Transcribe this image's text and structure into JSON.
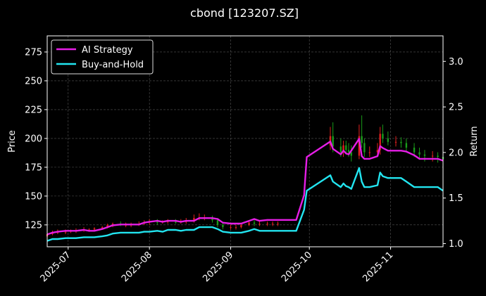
{
  "chart_data": {
    "type": "line",
    "title": "cbond [123207.SZ]",
    "xlabel": "",
    "ylabel_left": "Price",
    "ylabel_right": "Return",
    "x_ticks": [
      "2025-07",
      "2025-08",
      "2025-09",
      "2025-10",
      "2025-11"
    ],
    "y_left_ticks": [
      125,
      150,
      175,
      200,
      225,
      250,
      275
    ],
    "y_right_ticks": [
      "1.0",
      "1.5",
      "2.0",
      "2.5",
      "3.0"
    ],
    "x_range": [
      "2025-06-23",
      "2025-11-21"
    ],
    "y_left_range": [
      106,
      289
    ],
    "y_right_range": [
      0.965,
      3.28
    ],
    "grid": true,
    "legend_position": "upper-left",
    "colors": {
      "ai_strategy": "#e61ee6",
      "buy_and_hold": "#22e5f0",
      "candle_up": "#e02020",
      "candle_down": "#1a9a1a",
      "grid": "#555555",
      "axes": "#ffffff"
    },
    "series": [
      {
        "name": "AI Strategy",
        "axis": "right",
        "x": [
          "2025-06-23",
          "2025-06-25",
          "2025-06-27",
          "2025-06-30",
          "2025-07-02",
          "2025-07-04",
          "2025-07-07",
          "2025-07-09",
          "2025-07-11",
          "2025-07-14",
          "2025-07-16",
          "2025-07-18",
          "2025-07-21",
          "2025-07-23",
          "2025-07-25",
          "2025-07-28",
          "2025-07-30",
          "2025-08-01",
          "2025-08-04",
          "2025-08-06",
          "2025-08-08",
          "2025-08-11",
          "2025-08-13",
          "2025-08-15",
          "2025-08-18",
          "2025-08-20",
          "2025-08-22",
          "2025-08-25",
          "2025-08-27",
          "2025-08-29",
          "2025-09-01",
          "2025-09-03",
          "2025-09-05",
          "2025-09-08",
          "2025-09-10",
          "2025-09-12",
          "2025-09-15",
          "2025-09-17",
          "2025-09-19",
          "2025-09-22",
          "2025-09-24",
          "2025-09-26",
          "2025-09-29",
          "2025-09-30",
          "2025-10-09",
          "2025-10-10",
          "2025-10-13",
          "2025-10-14",
          "2025-10-15",
          "2025-10-16",
          "2025-10-17",
          "2025-10-20",
          "2025-10-21",
          "2025-10-22",
          "2025-10-24",
          "2025-10-27",
          "2025-10-28",
          "2025-10-29",
          "2025-10-31",
          "2025-11-03",
          "2025-11-05",
          "2025-11-07",
          "2025-11-10",
          "2025-11-12",
          "2025-11-14",
          "2025-11-17",
          "2025-11-19",
          "2025-11-21"
        ],
        "values": [
          1.1,
          1.12,
          1.13,
          1.14,
          1.14,
          1.14,
          1.15,
          1.14,
          1.14,
          1.16,
          1.18,
          1.2,
          1.21,
          1.21,
          1.21,
          1.21,
          1.23,
          1.24,
          1.25,
          1.24,
          1.25,
          1.25,
          1.24,
          1.25,
          1.25,
          1.28,
          1.28,
          1.28,
          1.27,
          1.23,
          1.22,
          1.22,
          1.22,
          1.25,
          1.27,
          1.25,
          1.26,
          1.26,
          1.26,
          1.26,
          1.26,
          1.26,
          1.53,
          1.95,
          2.12,
          2.04,
          1.98,
          2.02,
          1.99,
          1.98,
          2.02,
          2.15,
          1.96,
          1.93,
          1.93,
          1.96,
          2.07,
          2.05,
          2.02,
          2.02,
          2.02,
          2.01,
          1.97,
          1.93,
          1.93,
          1.93,
          1.93,
          1.91
        ]
      },
      {
        "name": "Buy-and-Hold",
        "axis": "right",
        "x": [
          "2025-06-23",
          "2025-06-25",
          "2025-06-27",
          "2025-06-30",
          "2025-07-02",
          "2025-07-04",
          "2025-07-07",
          "2025-07-09",
          "2025-07-11",
          "2025-07-14",
          "2025-07-16",
          "2025-07-18",
          "2025-07-21",
          "2025-07-23",
          "2025-07-25",
          "2025-07-28",
          "2025-07-30",
          "2025-08-01",
          "2025-08-04",
          "2025-08-06",
          "2025-08-08",
          "2025-08-11",
          "2025-08-13",
          "2025-08-15",
          "2025-08-18",
          "2025-08-20",
          "2025-08-22",
          "2025-08-25",
          "2025-08-27",
          "2025-08-29",
          "2025-09-01",
          "2025-09-03",
          "2025-09-05",
          "2025-09-08",
          "2025-09-10",
          "2025-09-12",
          "2025-09-15",
          "2025-09-17",
          "2025-09-19",
          "2025-09-22",
          "2025-09-24",
          "2025-09-26",
          "2025-09-29",
          "2025-09-30",
          "2025-10-09",
          "2025-10-10",
          "2025-10-13",
          "2025-10-14",
          "2025-10-15",
          "2025-10-16",
          "2025-10-17",
          "2025-10-20",
          "2025-10-21",
          "2025-10-22",
          "2025-10-24",
          "2025-10-27",
          "2025-10-28",
          "2025-10-29",
          "2025-10-31",
          "2025-11-03",
          "2025-11-05",
          "2025-11-07",
          "2025-11-10",
          "2025-11-12",
          "2025-11-14",
          "2025-11-17",
          "2025-11-19",
          "2025-11-21"
        ],
        "values": [
          1.03,
          1.05,
          1.05,
          1.06,
          1.06,
          1.06,
          1.07,
          1.07,
          1.07,
          1.08,
          1.09,
          1.11,
          1.12,
          1.12,
          1.12,
          1.12,
          1.13,
          1.13,
          1.14,
          1.13,
          1.15,
          1.15,
          1.14,
          1.15,
          1.15,
          1.18,
          1.18,
          1.18,
          1.16,
          1.13,
          1.12,
          1.12,
          1.12,
          1.14,
          1.16,
          1.14,
          1.14,
          1.14,
          1.14,
          1.14,
          1.14,
          1.14,
          1.37,
          1.58,
          1.75,
          1.68,
          1.62,
          1.66,
          1.63,
          1.62,
          1.6,
          1.83,
          1.68,
          1.62,
          1.62,
          1.64,
          1.78,
          1.74,
          1.72,
          1.72,
          1.72,
          1.68,
          1.62,
          1.62,
          1.62,
          1.62,
          1.62,
          1.58
        ]
      }
    ],
    "candles": {
      "axis": "left",
      "x": [
        "2025-06-23",
        "2025-06-25",
        "2025-06-27",
        "2025-06-30",
        "2025-07-02",
        "2025-07-04",
        "2025-07-07",
        "2025-07-09",
        "2025-07-11",
        "2025-07-14",
        "2025-07-16",
        "2025-07-18",
        "2025-07-21",
        "2025-07-23",
        "2025-07-25",
        "2025-07-28",
        "2025-07-30",
        "2025-08-01",
        "2025-08-04",
        "2025-08-06",
        "2025-08-08",
        "2025-08-11",
        "2025-08-13",
        "2025-08-15",
        "2025-08-18",
        "2025-08-20",
        "2025-08-22",
        "2025-08-25",
        "2025-08-27",
        "2025-08-29",
        "2025-09-01",
        "2025-09-03",
        "2025-09-05",
        "2025-09-08",
        "2025-09-10",
        "2025-09-12",
        "2025-09-15",
        "2025-09-17",
        "2025-09-19",
        "2025-10-09",
        "2025-10-10",
        "2025-10-13",
        "2025-10-14",
        "2025-10-15",
        "2025-10-16",
        "2025-10-17",
        "2025-10-20",
        "2025-10-21",
        "2025-10-22",
        "2025-10-24",
        "2025-10-27",
        "2025-10-28",
        "2025-10-29",
        "2025-10-31",
        "2025-11-03",
        "2025-11-05",
        "2025-11-07",
        "2025-11-10",
        "2025-11-12",
        "2025-11-14",
        "2025-11-17",
        "2025-11-19",
        "2025-11-21"
      ],
      "open": [
        115,
        117,
        118,
        119,
        119,
        120,
        120,
        121,
        121,
        122,
        123,
        125,
        126,
        125,
        125,
        125,
        126,
        127,
        128,
        127,
        128,
        128,
        127,
        128,
        128,
        131,
        131,
        131,
        129,
        125,
        123,
        123,
        123,
        125,
        127,
        126,
        126,
        126,
        126,
        194,
        202,
        193,
        188,
        194,
        190,
        188,
        185,
        202,
        196,
        188,
        188,
        190,
        204,
        200,
        197,
        197,
        196,
        192,
        188,
        186,
        185,
        185,
        184
      ],
      "close": [
        117,
        118,
        119,
        119,
        120,
        120,
        121,
        121,
        122,
        123,
        125,
        126,
        125,
        125,
        125,
        126,
        127,
        128,
        127,
        128,
        128,
        127,
        128,
        128,
        131,
        131,
        131,
        129,
        125,
        123,
        123,
        123,
        125,
        127,
        126,
        126,
        126,
        126,
        126,
        202,
        193,
        188,
        194,
        190,
        188,
        185,
        202,
        196,
        188,
        188,
        190,
        204,
        200,
        197,
        197,
        196,
        192,
        188,
        186,
        185,
        185,
        184,
        182
      ],
      "high": [
        119,
        120,
        121,
        121,
        121,
        122,
        123,
        122,
        123,
        124,
        126,
        127,
        128,
        127,
        127,
        128,
        129,
        130,
        130,
        129,
        130,
        130,
        130,
        131,
        134,
        135,
        134,
        133,
        131,
        127,
        125,
        125,
        126,
        129,
        129,
        128,
        128,
        128,
        128,
        210,
        214,
        200,
        198,
        198,
        196,
        194,
        212,
        220,
        200,
        193,
        196,
        210,
        212,
        206,
        202,
        201,
        200,
        196,
        192,
        190,
        189,
        188,
        188
      ],
      "low": [
        114,
        116,
        117,
        117,
        118,
        118,
        119,
        119,
        120,
        121,
        122,
        123,
        124,
        123,
        123,
        124,
        125,
        125,
        125,
        126,
        126,
        126,
        126,
        126,
        127,
        129,
        129,
        127,
        123,
        121,
        121,
        121,
        122,
        124,
        124,
        124,
        124,
        124,
        124,
        190,
        188,
        184,
        184,
        186,
        184,
        180,
        182,
        192,
        184,
        184,
        186,
        186,
        196,
        194,
        193,
        192,
        188,
        184,
        182,
        180,
        180,
        179,
        178
      ]
    }
  }
}
